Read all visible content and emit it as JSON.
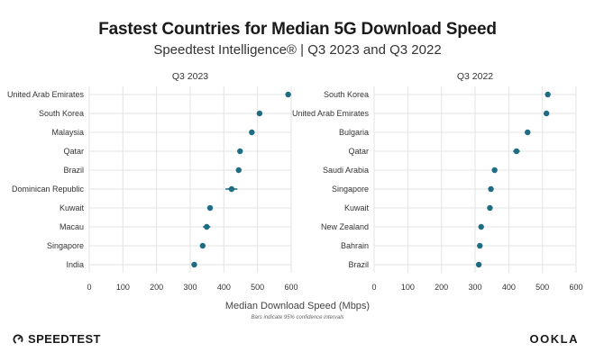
{
  "header": {
    "title": "Fastest Countries for Median 5G Download Speed",
    "subtitle": "Speedtest Intelligence® | Q3 2023 and Q3 2022"
  },
  "footer": {
    "xlabel": "Median Download Speed (Mbps)",
    "note": "Bars indicate 95% confidence intervals",
    "brand_left": "SPEEDTEST",
    "brand_right": "OOKLA"
  },
  "colors": {
    "point": "#1f6c85",
    "grid": "#e3e3e3",
    "text": "#333333"
  },
  "chart_data": [
    {
      "type": "scatter",
      "title": "Q3 2023",
      "xlim": [
        0,
        600
      ],
      "xticks": [
        0,
        100,
        200,
        300,
        400,
        500,
        600
      ],
      "grid": true,
      "categories": [
        "United Arab Emirates",
        "South Korea",
        "Malaysia",
        "Qatar",
        "Brazil",
        "Dominican Republic",
        "Kuwait",
        "Macau",
        "Singapore",
        "India"
      ],
      "values": [
        591,
        506,
        483,
        448,
        444,
        423,
        359,
        349,
        337,
        312
      ],
      "ci_low": [
        588,
        503,
        480,
        441,
        440,
        405,
        355,
        338,
        334,
        310
      ],
      "ci_high": [
        594,
        509,
        486,
        455,
        448,
        440,
        363,
        360,
        340,
        314
      ]
    },
    {
      "type": "scatter",
      "title": "Q3 2022",
      "xlim": [
        0,
        600
      ],
      "xticks": [
        0,
        100,
        200,
        300,
        400,
        500,
        600
      ],
      "grid": true,
      "categories": [
        "South Korea",
        "United Arab Emirates",
        "Bulgaria",
        "Qatar",
        "Saudi Arabia",
        "Singapore",
        "Kuwait",
        "New Zealand",
        "Bahrain",
        "Brazil"
      ],
      "values": [
        516,
        512,
        456,
        423,
        358,
        347,
        344,
        318,
        314,
        311
      ],
      "ci_low": [
        512,
        509,
        453,
        413,
        355,
        344,
        341,
        315,
        311,
        308
      ],
      "ci_high": [
        520,
        515,
        459,
        433,
        361,
        350,
        347,
        321,
        317,
        314
      ]
    }
  ]
}
